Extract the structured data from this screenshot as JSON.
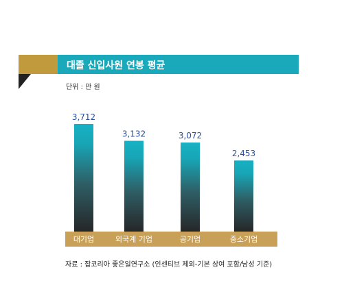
{
  "title": "대졸 신입사원 연봉 평균",
  "unit_label": "단위 : 만 원",
  "source": "자료 : 잡코리아 좋은일연구소 (인센티브 제외-기본 상여 포함/남성 기준)",
  "colors": {
    "accent": "#1aa9bb",
    "gold": "#c29a3e",
    "value_text": "#2a4f9b"
  },
  "chart_data": {
    "type": "bar",
    "categories": [
      "대기업",
      "외국계 기업",
      "공기업",
      "중소기업"
    ],
    "values": [
      3712,
      3132,
      3072,
      2453
    ],
    "value_labels": [
      "3,712",
      "3,132",
      "3,072",
      "2,453"
    ],
    "ylim": [
      0,
      4000
    ],
    "grid": false
  }
}
